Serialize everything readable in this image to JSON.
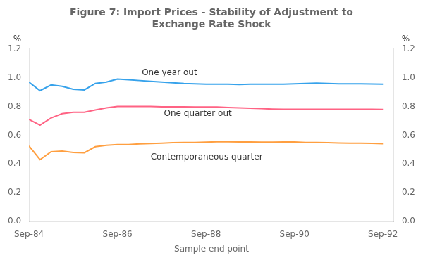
{
  "chart_data": {
    "type": "line",
    "title": [
      "Figure 7: Import Prices - Stability of Adjustment to",
      "Exchange Rate Shock"
    ],
    "x_label": "Sample end point",
    "y_label": "%",
    "y2_label": "%",
    "x": [
      1984.75,
      1985.0,
      1985.25,
      1985.5,
      1985.75,
      1986.0,
      1986.25,
      1986.5,
      1986.75,
      1987.0,
      1987.25,
      1987.5,
      1987.75,
      1988.0,
      1988.25,
      1988.5,
      1988.75,
      1989.0,
      1989.25,
      1989.5,
      1989.75,
      1990.0,
      1990.25,
      1990.5,
      1990.75,
      1991.0,
      1991.25,
      1991.5,
      1991.75,
      1992.0,
      1992.25,
      1992.5,
      1992.75
    ],
    "series": [
      {
        "name": "One year out",
        "values": [
          0.97,
          0.91,
          0.95,
          0.94,
          0.92,
          0.915,
          0.96,
          0.97,
          0.99,
          0.985,
          0.98,
          0.975,
          0.97,
          0.965,
          0.96,
          0.958,
          0.955,
          0.955,
          0.955,
          0.953,
          0.955,
          0.955,
          0.955,
          0.955,
          0.958,
          0.96,
          0.962,
          0.96,
          0.958,
          0.957,
          0.957,
          0.956,
          0.955
        ]
      },
      {
        "name": "One quarter out",
        "values": [
          0.71,
          0.67,
          0.72,
          0.75,
          0.76,
          0.76,
          0.775,
          0.79,
          0.8,
          0.8,
          0.8,
          0.8,
          0.798,
          0.797,
          0.797,
          0.796,
          0.796,
          0.796,
          0.793,
          0.79,
          0.788,
          0.785,
          0.782,
          0.78,
          0.78,
          0.78,
          0.78,
          0.78,
          0.78,
          0.78,
          0.78,
          0.78,
          0.779
        ]
      },
      {
        "name": "Contemporaneous quarter",
        "values": [
          0.525,
          0.43,
          0.485,
          0.49,
          0.48,
          0.478,
          0.52,
          0.53,
          0.535,
          0.535,
          0.54,
          0.542,
          0.545,
          0.548,
          0.55,
          0.55,
          0.552,
          0.554,
          0.554,
          0.553,
          0.553,
          0.552,
          0.552,
          0.553,
          0.553,
          0.55,
          0.549,
          0.548,
          0.546,
          0.545,
          0.544,
          0.543,
          0.541
        ]
      }
    ],
    "xlim": [
      1984.75,
      1993.0
    ],
    "xticks": [
      {
        "value": 1984.75,
        "label": "Sep-84"
      },
      {
        "value": 1986.75,
        "label": "Sep-86"
      },
      {
        "value": 1988.75,
        "label": "Sep-88"
      },
      {
        "value": 1990.75,
        "label": "Sep-90"
      },
      {
        "value": 1992.75,
        "label": "Sep-92"
      }
    ],
    "ylim": [
      0.0,
      1.2
    ],
    "yticks": [
      {
        "value": 0.0,
        "label": "0.0"
      },
      0.2,
      0.4,
      0.6,
      0.8,
      {
        "value": 1.0,
        "label": "1.0"
      },
      1.2
    ],
    "y2lim": [
      0.0,
      1.2
    ],
    "y2ticks": [
      {
        "value": 0.0,
        "label": "0.0"
      },
      0.2,
      0.4,
      0.6,
      0.8,
      {
        "value": 1.0,
        "label": "1.0"
      },
      1.2
    ],
    "annotations": [
      {
        "text": "One year out",
        "x": 1987.3,
        "y": 1.005
      },
      {
        "text": "One quarter out",
        "x": 1987.8,
        "y": 0.718
      },
      {
        "text": "Contemporaneous quarter",
        "x": 1987.5,
        "y": 0.415
      }
    ],
    "grid": false
  }
}
